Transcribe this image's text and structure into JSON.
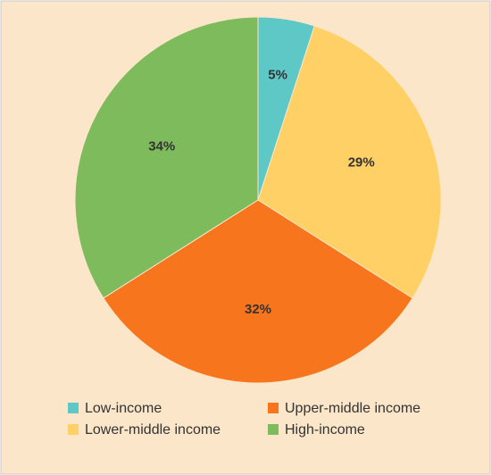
{
  "chart_data": {
    "type": "pie",
    "categories": [
      "Low-income",
      "Lower-middle income",
      "Upper-middle income",
      "High-income"
    ],
    "values": [
      5,
      29,
      32,
      34
    ],
    "value_labels": [
      "5%",
      "29%",
      "32%",
      "34%"
    ],
    "colors": [
      "#5ec8c6",
      "#fed065",
      "#f7761d",
      "#7dbb5c"
    ]
  }
}
